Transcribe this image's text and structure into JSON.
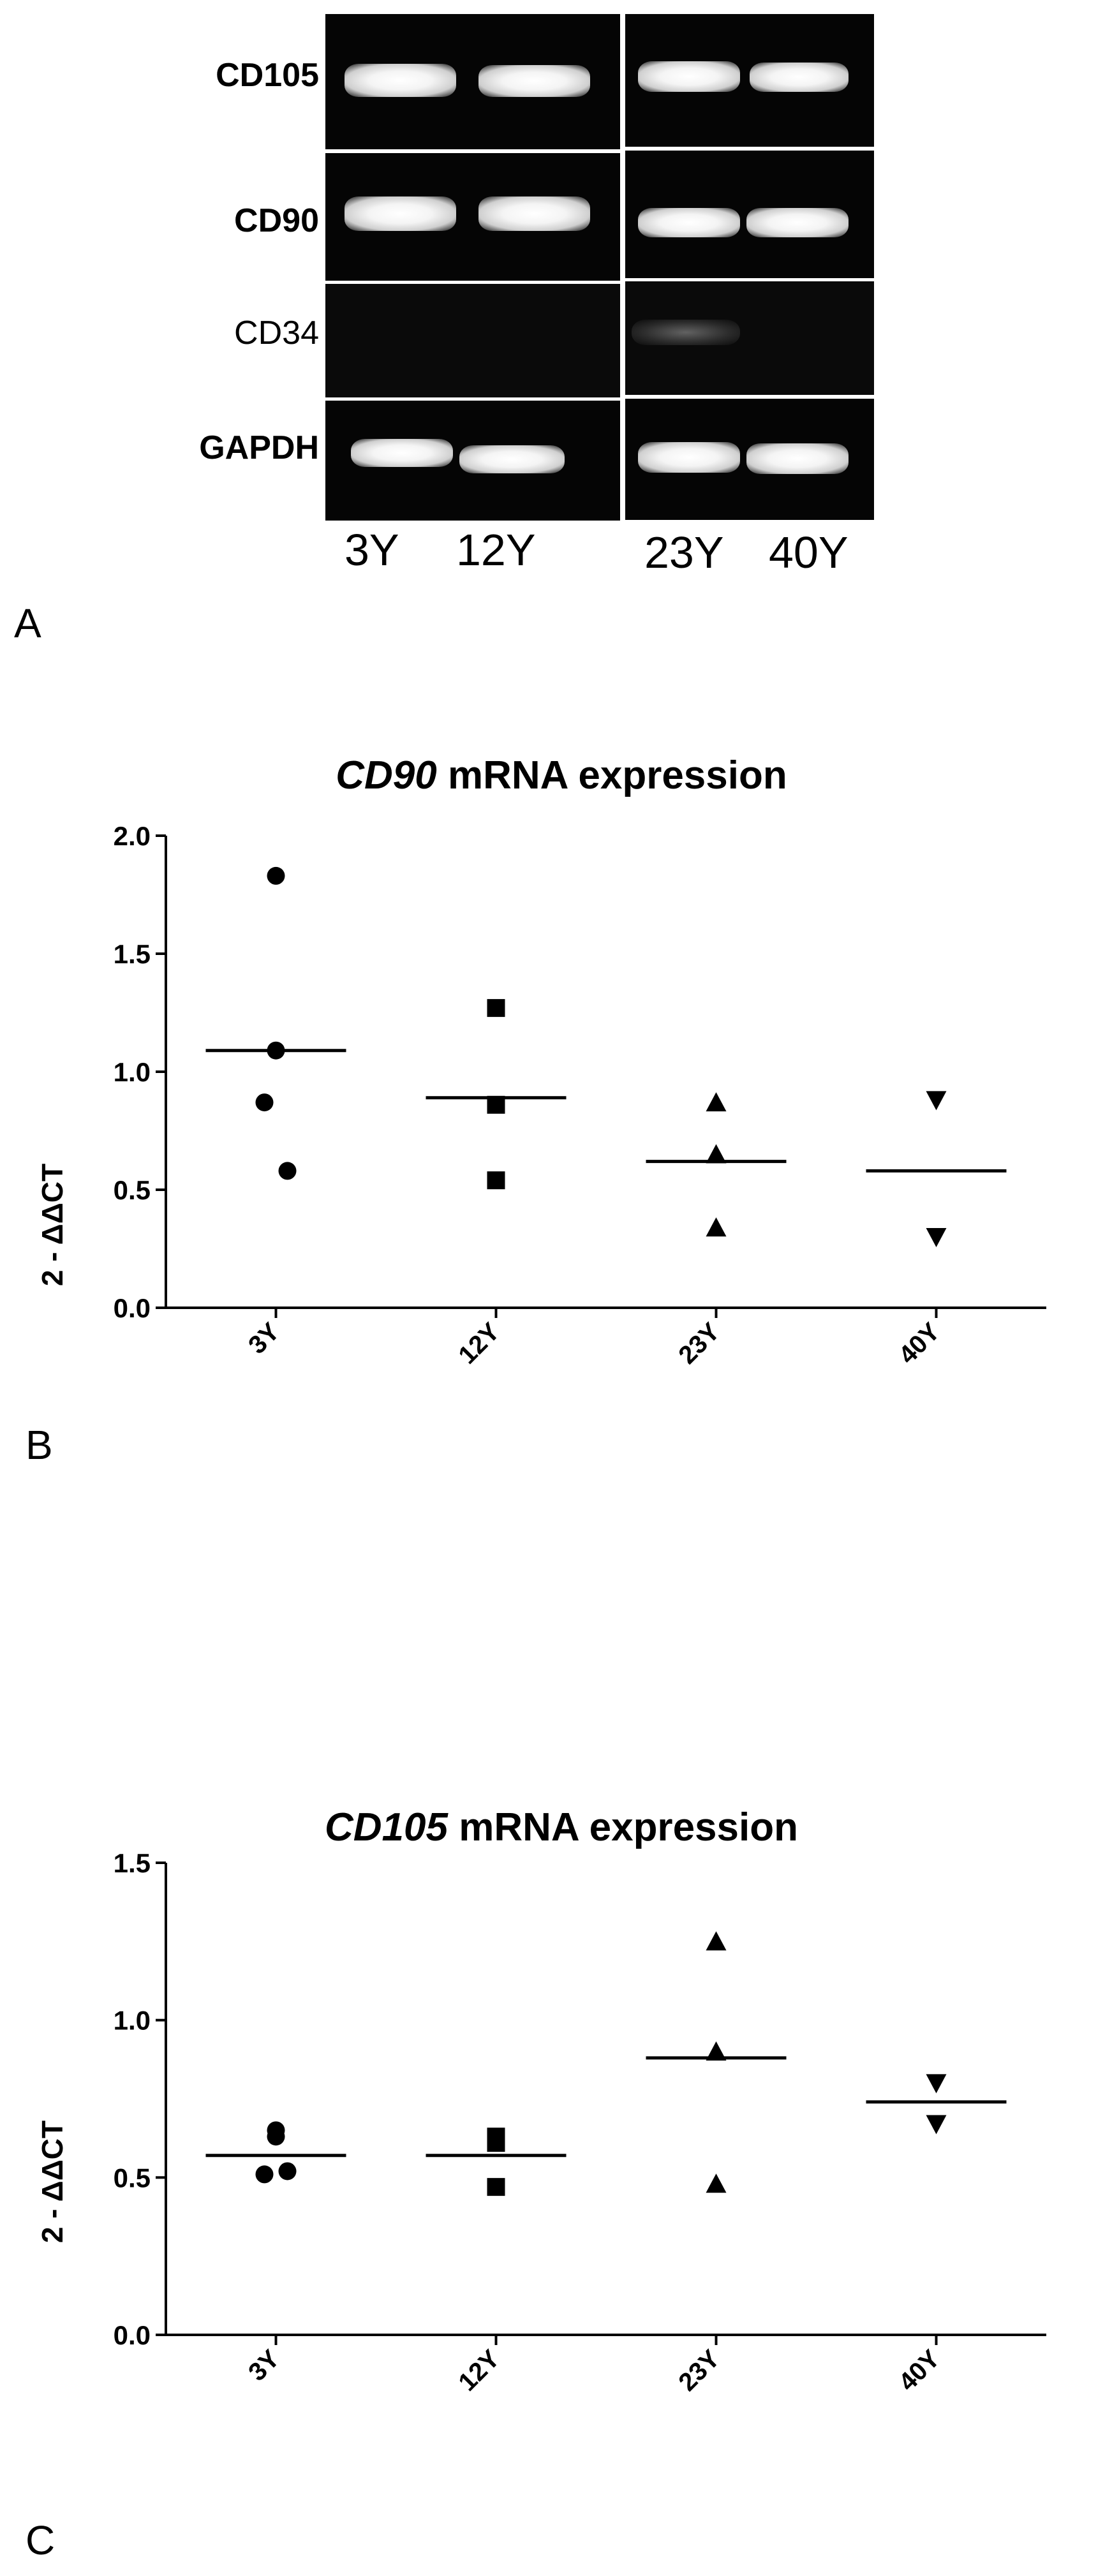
{
  "panel_a": {
    "letter": "A",
    "rows": [
      {
        "label": "CD105",
        "bands": [
          "strong",
          "strong",
          "strong",
          "strong"
        ]
      },
      {
        "label": "CD90",
        "bands": [
          "strong",
          "strong",
          "strong",
          "strong"
        ]
      },
      {
        "label": "CD34",
        "bands": [
          "none",
          "none",
          "faint",
          "none"
        ]
      },
      {
        "label": "GAPDH",
        "bands": [
          "strong",
          "strong",
          "strong",
          "strong"
        ]
      }
    ],
    "lanes": [
      "3Y",
      "12Y",
      "23Y",
      "40Y"
    ]
  },
  "panel_b": {
    "letter": "B",
    "title_gene": "CD90",
    "title_rest": " mRNA expression",
    "ylabel": "2 - ΔΔCT"
  },
  "panel_c": {
    "letter": "C",
    "title_gene": "CD105",
    "title_rest": " mRNA expression",
    "ylabel": "2 - ΔΔCT"
  },
  "chart_data": [
    {
      "type": "scatter",
      "title": "CD90 mRNA expression",
      "ylabel": "2 - ΔΔCT",
      "categories": [
        "3Y",
        "12Y",
        "23Y",
        "40Y"
      ],
      "ylim": [
        0.0,
        2.0
      ],
      "yticks": [
        "0.0",
        "0.5",
        "1.0",
        "1.5",
        "2.0"
      ],
      "series": [
        {
          "category": "3Y",
          "marker": "circle",
          "values": [
            1.83,
            1.09,
            0.87,
            0.58
          ],
          "mean": 1.09
        },
        {
          "category": "12Y",
          "marker": "square",
          "values": [
            1.27,
            0.86,
            0.54
          ],
          "mean": 0.89
        },
        {
          "category": "23Y",
          "marker": "triangle-up",
          "values": [
            0.87,
            0.65,
            0.34
          ],
          "mean": 0.62
        },
        {
          "category": "40Y",
          "marker": "triangle-down",
          "values": [
            0.88,
            0.3
          ],
          "mean": 0.58
        }
      ],
      "grid": false
    },
    {
      "type": "scatter",
      "title": "CD105 mRNA expression",
      "ylabel": "2 - ΔΔCT",
      "categories": [
        "3Y",
        "12Y",
        "23Y",
        "40Y"
      ],
      "ylim": [
        0.0,
        1.5
      ],
      "yticks": [
        "0.0",
        "0.5",
        "1.0",
        "1.5"
      ],
      "series": [
        {
          "category": "3Y",
          "marker": "circle",
          "values": [
            0.65,
            0.63,
            0.51,
            0.52
          ],
          "mean": 0.57
        },
        {
          "category": "12Y",
          "marker": "square",
          "values": [
            0.63,
            0.61,
            0.47
          ],
          "mean": 0.57
        },
        {
          "category": "23Y",
          "marker": "triangle-up",
          "values": [
            1.25,
            0.9,
            0.48
          ],
          "mean": 0.88
        },
        {
          "category": "40Y",
          "marker": "triangle-down",
          "values": [
            0.8,
            0.67
          ],
          "mean": 0.74
        }
      ],
      "grid": false
    }
  ]
}
